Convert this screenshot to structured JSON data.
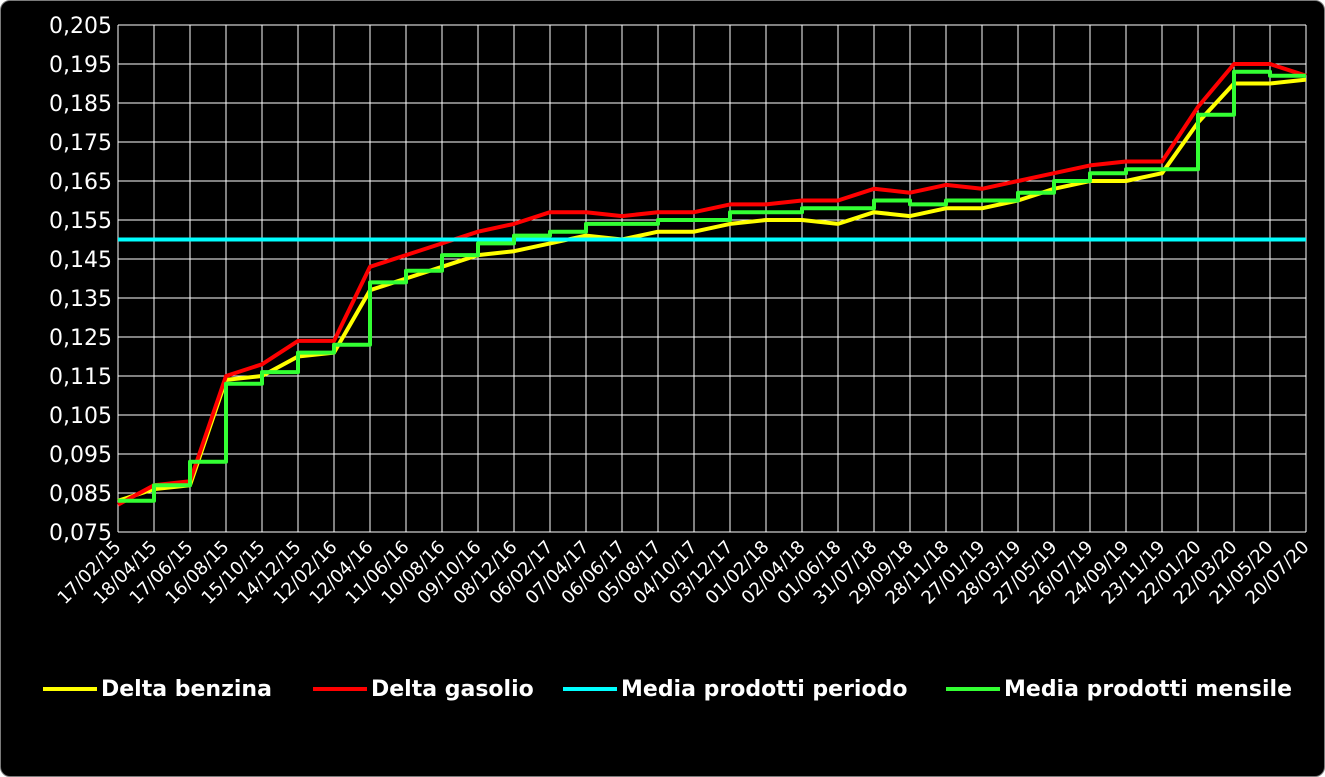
{
  "chart_data": {
    "type": "line",
    "xlabel": "",
    "ylabel": "",
    "x_ticks": [
      "17/02/15",
      "18/04/15",
      "17/06/15",
      "16/08/15",
      "15/10/15",
      "14/12/15",
      "12/02/16",
      "12/04/16",
      "11/06/16",
      "10/08/16",
      "09/10/16",
      "08/12/16",
      "06/02/17",
      "07/04/17",
      "06/06/17",
      "05/08/17",
      "04/10/17",
      "03/12/17",
      "01/02/18",
      "02/04/18",
      "01/06/18",
      "31/07/18",
      "29/09/18",
      "28/11/18",
      "27/01/19",
      "28/03/19",
      "27/05/19",
      "26/07/19",
      "24/09/19",
      "23/11/19",
      "22/01/20",
      "22/03/20",
      "21/05/20",
      "20/07/20"
    ],
    "y_ticks": [
      "0,075",
      "0,085",
      "0,095",
      "0,105",
      "0,115",
      "0,125",
      "0,135",
      "0,145",
      "0,155",
      "0,165",
      "0,175",
      "0,185",
      "0,195",
      "0,205"
    ],
    "ylim": [
      0.075,
      0.205
    ],
    "grid": true,
    "legend_position": "bottom",
    "series": [
      {
        "name": "Delta benzina",
        "color": "#ffff00",
        "x": [
          "17/02/15",
          "18/04/15",
          "17/06/15",
          "16/08/15",
          "15/10/15",
          "14/12/15",
          "12/02/16",
          "12/04/16",
          "11/06/16",
          "10/08/16",
          "09/10/16",
          "08/12/16",
          "06/02/17",
          "07/04/17",
          "06/06/17",
          "05/08/17",
          "04/10/17",
          "03/12/17",
          "01/02/18",
          "02/04/18",
          "01/06/18",
          "31/07/18",
          "29/09/18",
          "28/11/18",
          "27/01/19",
          "28/03/19",
          "27/05/19",
          "26/07/19",
          "24/09/19",
          "23/11/19",
          "22/01/20",
          "22/03/20",
          "21/05/20",
          "20/07/20"
        ],
        "values": [
          0.083,
          0.086,
          0.087,
          0.114,
          0.115,
          0.12,
          0.121,
          0.137,
          0.14,
          0.143,
          0.146,
          0.147,
          0.149,
          0.151,
          0.15,
          0.152,
          0.152,
          0.154,
          0.155,
          0.155,
          0.154,
          0.157,
          0.156,
          0.158,
          0.158,
          0.16,
          0.163,
          0.165,
          0.165,
          0.167,
          0.18,
          0.19,
          0.19,
          0.191
        ]
      },
      {
        "name": "Delta gasolio",
        "color": "#ff0000",
        "x": [
          "17/02/15",
          "18/04/15",
          "17/06/15",
          "16/08/15",
          "15/10/15",
          "14/12/15",
          "12/02/16",
          "12/04/16",
          "11/06/16",
          "10/08/16",
          "09/10/16",
          "08/12/16",
          "06/02/17",
          "07/04/17",
          "06/06/17",
          "05/08/17",
          "04/10/17",
          "03/12/17",
          "01/02/18",
          "02/04/18",
          "01/06/18",
          "31/07/18",
          "29/09/18",
          "28/11/18",
          "27/01/19",
          "28/03/19",
          "27/05/19",
          "26/07/19",
          "24/09/19",
          "23/11/19",
          "22/01/20",
          "22/03/20",
          "21/05/20",
          "20/07/20"
        ],
        "values": [
          0.082,
          0.087,
          0.088,
          0.115,
          0.118,
          0.124,
          0.124,
          0.143,
          0.146,
          0.149,
          0.152,
          0.154,
          0.157,
          0.157,
          0.156,
          0.157,
          0.157,
          0.159,
          0.159,
          0.16,
          0.16,
          0.163,
          0.162,
          0.164,
          0.163,
          0.165,
          0.167,
          0.169,
          0.17,
          0.17,
          0.184,
          0.195,
          0.195,
          0.192
        ]
      },
      {
        "name": "Media prodotti periodo",
        "color": "#00ffff",
        "x": [
          "17/02/15",
          "20/07/20"
        ],
        "values": [
          0.15,
          0.15
        ]
      },
      {
        "name": "Media prodotti mensile",
        "color": "#33ff33",
        "x": [
          "17/02/15",
          "18/04/15",
          "17/06/15",
          "16/08/15",
          "15/10/15",
          "14/12/15",
          "12/02/16",
          "12/04/16",
          "11/06/16",
          "10/08/16",
          "09/10/16",
          "08/12/16",
          "06/02/17",
          "07/04/17",
          "06/06/17",
          "05/08/17",
          "04/10/17",
          "03/12/17",
          "01/02/18",
          "02/04/18",
          "01/06/18",
          "31/07/18",
          "29/09/18",
          "28/11/18",
          "27/01/19",
          "28/03/19",
          "27/05/19",
          "26/07/19",
          "24/09/19",
          "23/11/19",
          "22/01/20",
          "22/03/20",
          "21/05/20",
          "20/07/20"
        ],
        "values": [
          0.083,
          0.087,
          0.093,
          0.113,
          0.116,
          0.121,
          0.123,
          0.139,
          0.142,
          0.146,
          0.149,
          0.151,
          0.152,
          0.154,
          0.154,
          0.155,
          0.155,
          0.157,
          0.157,
          0.158,
          0.158,
          0.16,
          0.159,
          0.16,
          0.16,
          0.162,
          0.165,
          0.167,
          0.168,
          0.168,
          0.182,
          0.193,
          0.192,
          0.192
        ]
      }
    ]
  }
}
